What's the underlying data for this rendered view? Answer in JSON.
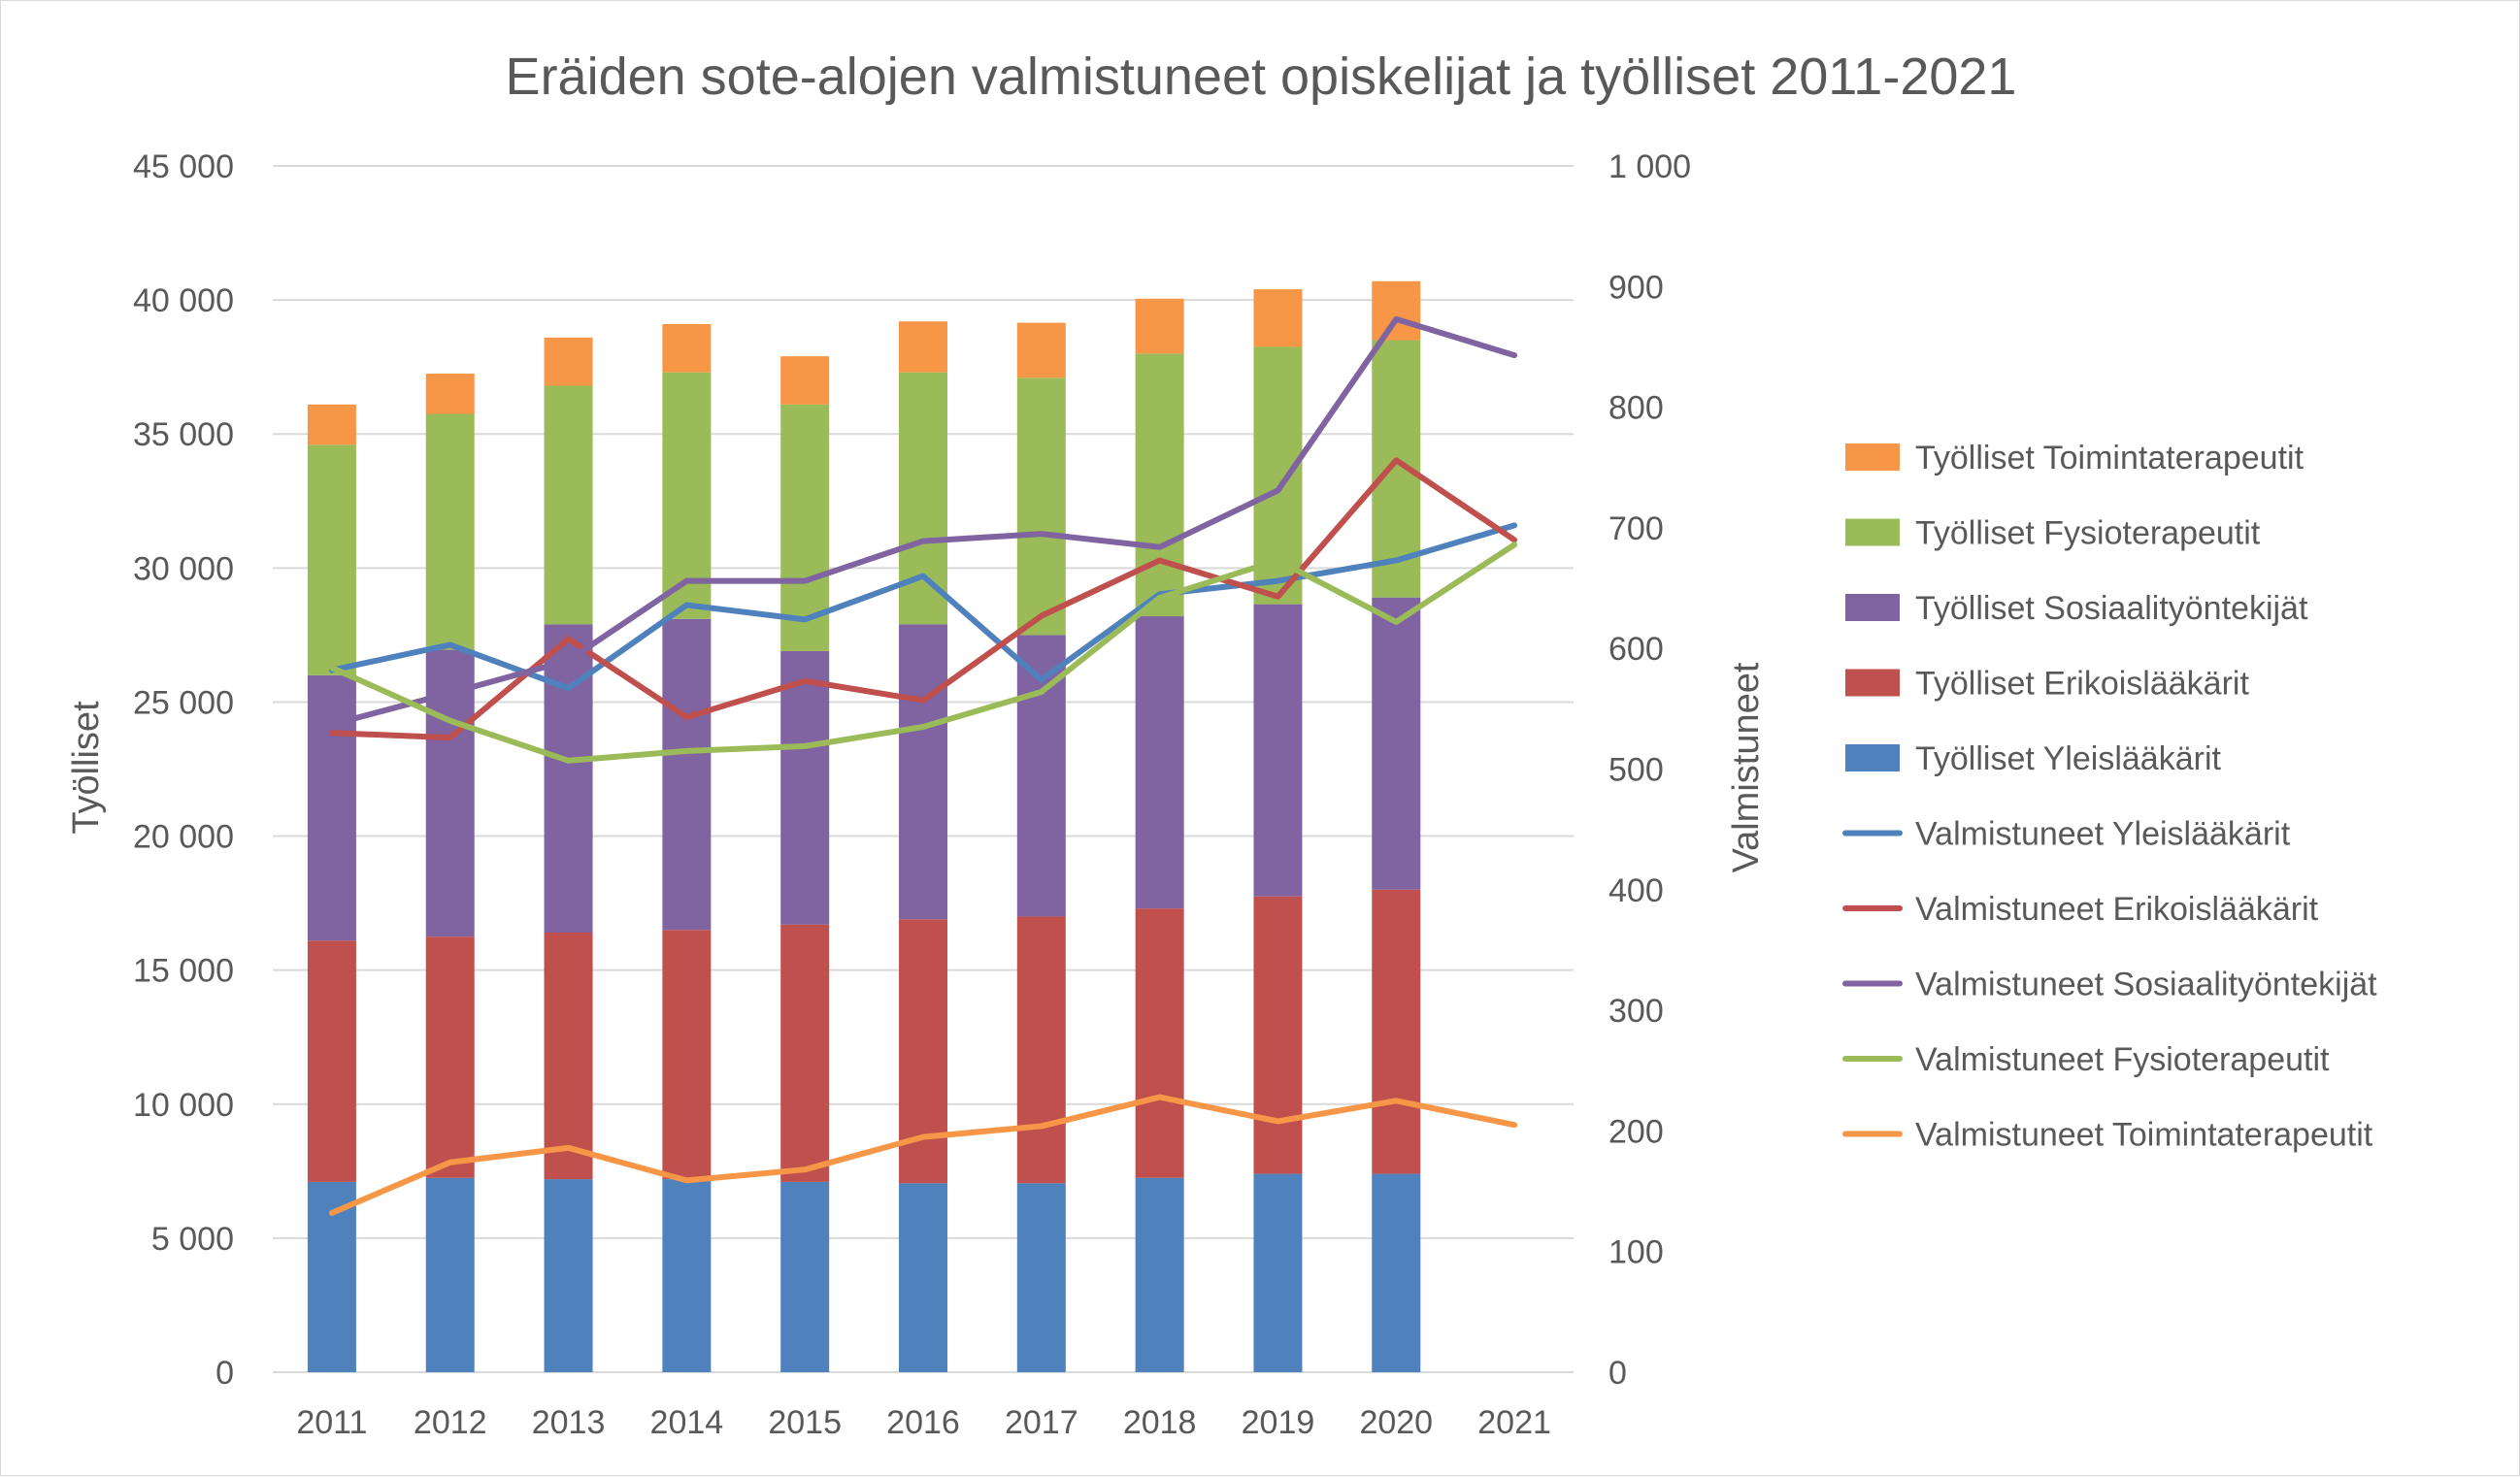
{
  "chart_data": {
    "type": "bar",
    "stacked": true,
    "title": "Eräiden sote-alojen valmistuneet opiskelijat ja työlliset 2011-2021",
    "categories": [
      "2011",
      "2012",
      "2013",
      "2014",
      "2015",
      "2016",
      "2017",
      "2018",
      "2019",
      "2020",
      "2021"
    ],
    "y_left": {
      "label": "Työlliset",
      "range": [
        0,
        45000
      ],
      "ticks": [
        0,
        5000,
        10000,
        15000,
        20000,
        25000,
        30000,
        35000,
        40000,
        45000
      ],
      "tick_labels": [
        "0",
        "5 000",
        "10 000",
        "15 000",
        "20 000",
        "25 000",
        "30 000",
        "35 000",
        "40 000",
        "45 000"
      ]
    },
    "y_right": {
      "label": "Valmistuneet",
      "range": [
        0,
        1000
      ],
      "ticks": [
        0,
        100,
        200,
        300,
        400,
        500,
        600,
        700,
        800,
        900,
        1000
      ],
      "tick_labels": [
        "0",
        "100",
        "200",
        "300",
        "400",
        "500",
        "600",
        "700",
        "800",
        "900",
        "1 000"
      ]
    },
    "grid": true,
    "legend_position": "right",
    "bar_series": [
      {
        "name": "Työlliset Yleislääkärit",
        "color": "#4f81bd",
        "values": [
          7100,
          7250,
          7200,
          7200,
          7100,
          7050,
          7050,
          7250,
          7400,
          7400,
          null
        ]
      },
      {
        "name": "Työlliset Erikoislääkärit",
        "color": "#c0504d",
        "values": [
          9000,
          9000,
          9200,
          9300,
          9600,
          9850,
          9950,
          10050,
          10350,
          10600,
          null
        ]
      },
      {
        "name": "Työlliset Sosiaalityöntekijät",
        "color": "#8064a2",
        "values": [
          9900,
          10700,
          11500,
          11600,
          10200,
          11000,
          10500,
          10900,
          10900,
          10900,
          null
        ]
      },
      {
        "name": "Työlliset Fysioterapeutit",
        "color": "#9bbb59",
        "values": [
          8600,
          8800,
          8900,
          9200,
          9200,
          9400,
          9600,
          9800,
          9600,
          9600,
          null
        ]
      },
      {
        "name": "Työlliset Toimintaterapeutit",
        "color": "#f79646",
        "values": [
          1500,
          1500,
          1800,
          1800,
          1800,
          1900,
          2050,
          2050,
          2150,
          2200,
          null
        ]
      }
    ],
    "line_series": [
      {
        "name": "Valmistuneet Yleislääkärit",
        "color": "#4f81bd",
        "values": [
          582,
          603,
          567,
          636,
          624,
          660,
          574,
          645,
          656,
          673,
          702
        ]
      },
      {
        "name": "Valmistuneet Erikoislääkärit",
        "color": "#c0504d",
        "values": [
          530,
          526,
          608,
          543,
          573,
          557,
          627,
          673,
          643,
          756,
          690
        ]
      },
      {
        "name": "Valmistuneet Sosiaalityöntekijät",
        "color": "#8064a2",
        "values": [
          537,
          563,
          590,
          656,
          656,
          689,
          695,
          684,
          731,
          873,
          843
        ]
      },
      {
        "name": "Valmistuneet Fysioterapeutit",
        "color": "#9bbb59",
        "values": [
          584,
          540,
          507,
          515,
          519,
          535,
          564,
          642,
          673,
          622,
          686
        ]
      },
      {
        "name": "Valmistuneet Toimintaterapeutit",
        "color": "#f79646",
        "values": [
          132,
          174,
          186,
          159,
          168,
          195,
          204,
          228,
          208,
          225,
          205
        ]
      }
    ],
    "legend_order": [
      "Työlliset Toimintaterapeutit",
      "Työlliset Fysioterapeutit",
      "Työlliset Sosiaalityöntekijät",
      "Työlliset Erikoislääkärit",
      "Työlliset Yleislääkärit",
      "Valmistuneet Yleislääkärit",
      "Valmistuneet Erikoislääkärit",
      "Valmistuneet Sosiaalityöntekijät",
      "Valmistuneet Fysioterapeutit",
      "Valmistuneet Toimintaterapeutit"
    ]
  }
}
